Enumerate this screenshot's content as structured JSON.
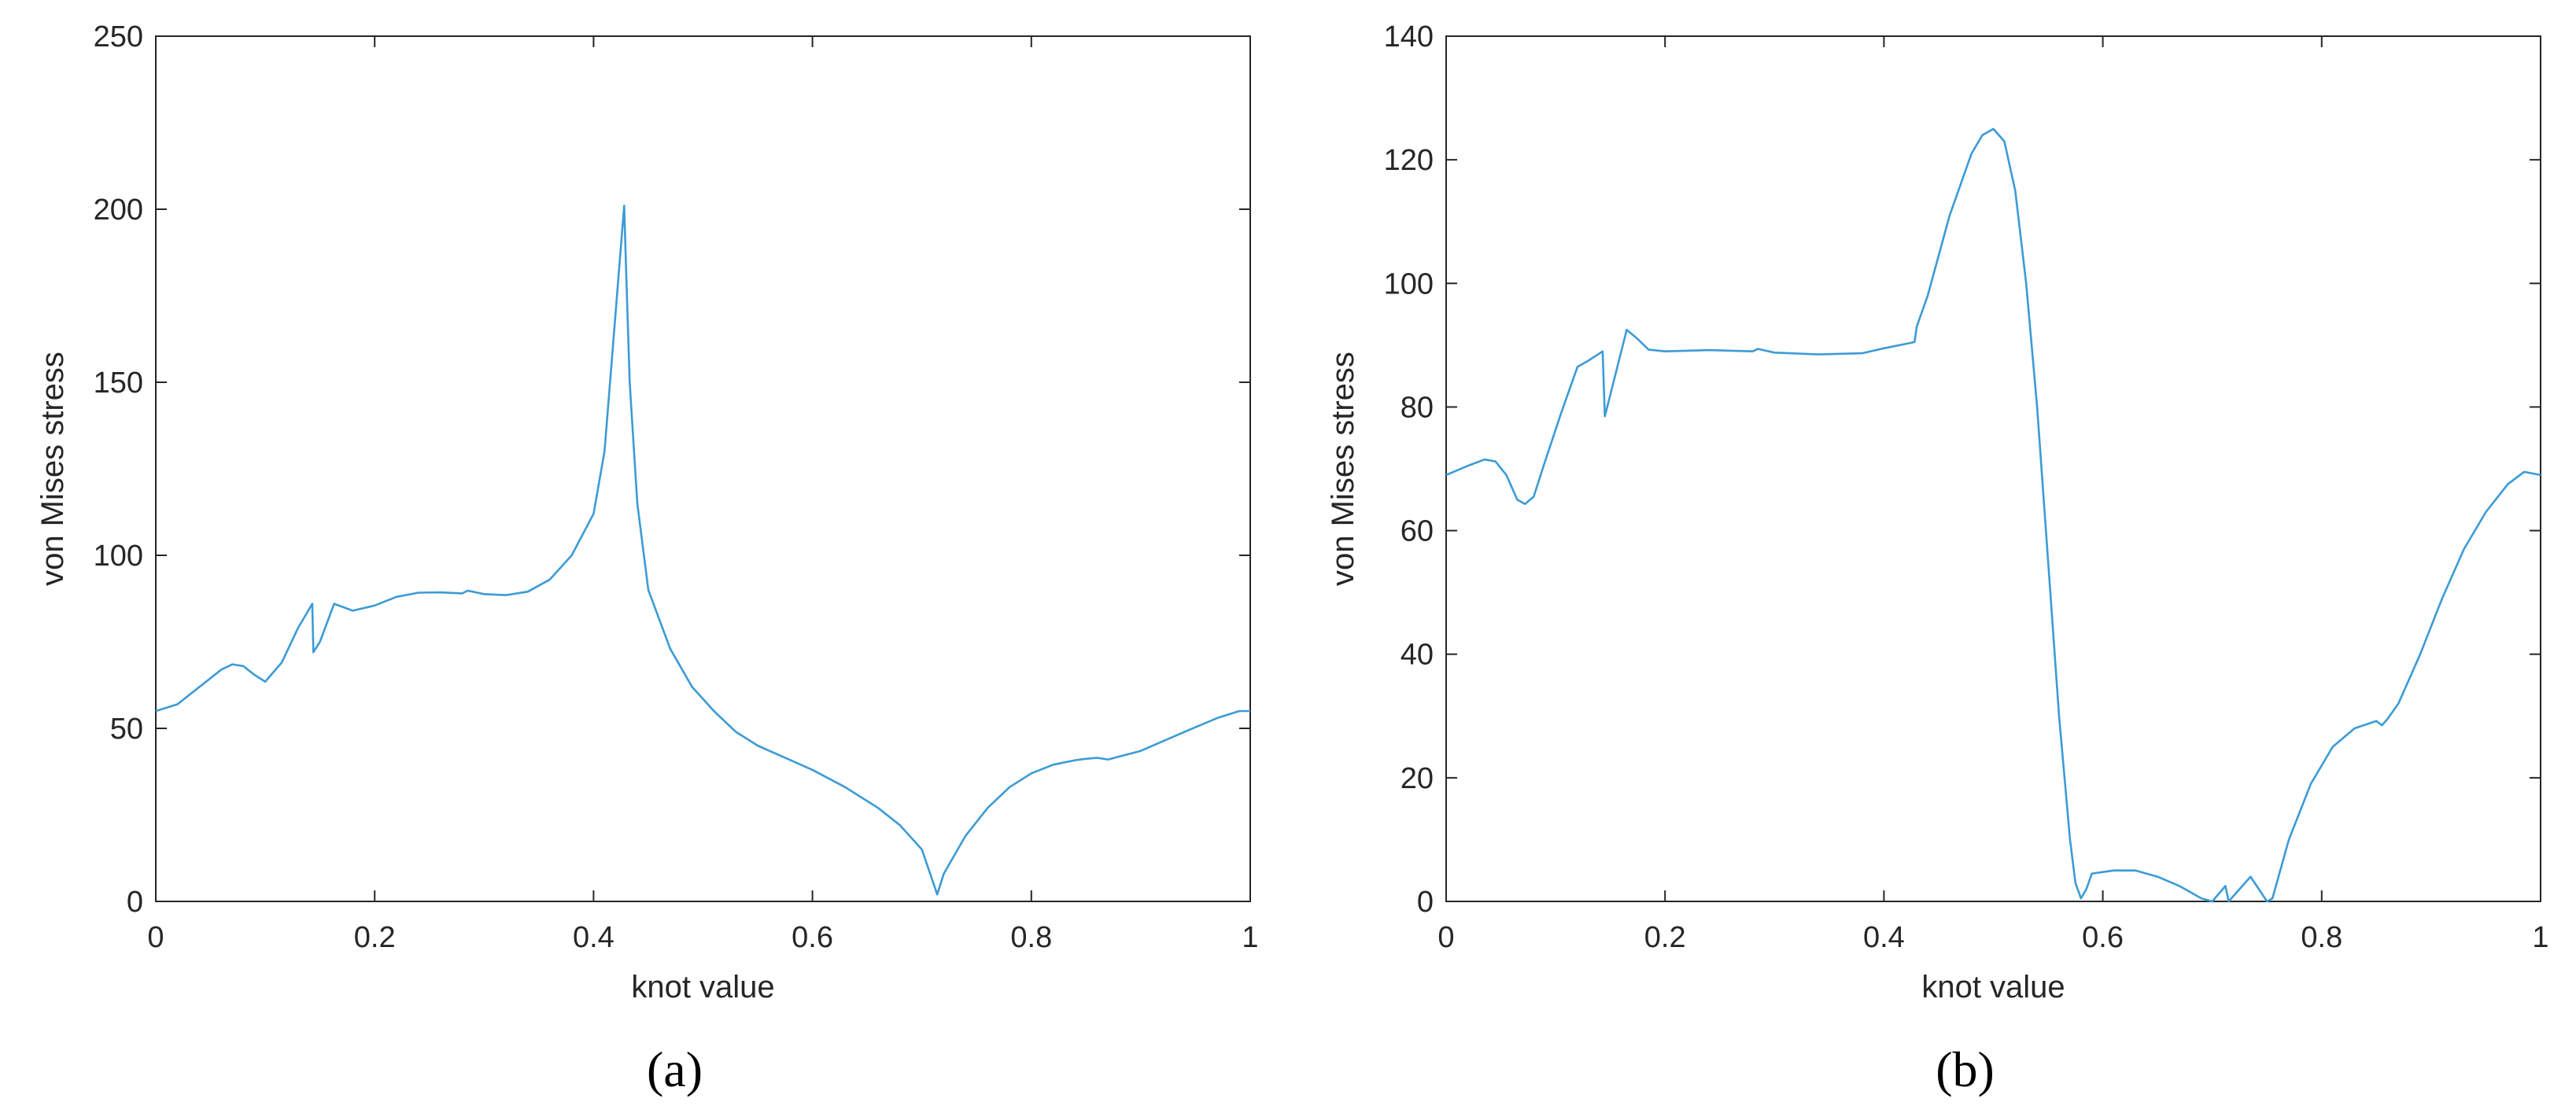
{
  "colors": {
    "line": "#3c9bd6",
    "axis": "#262626",
    "background": "#ffffff"
  },
  "chart_data": [
    {
      "type": "line",
      "panel_label": "(a)",
      "xlabel": "knot value",
      "ylabel": "von Mises stress",
      "xlim": [
        0,
        1
      ],
      "ylim": [
        0,
        250
      ],
      "xticks": [
        0,
        0.2,
        0.4,
        0.6,
        0.8,
        1
      ],
      "xtick_labels": [
        "0",
        "0.2",
        "0.4",
        "0.6",
        "0.8",
        "1"
      ],
      "yticks": [
        0,
        50,
        100,
        150,
        200,
        250
      ],
      "ytick_labels": [
        "0",
        "50",
        "100",
        "150",
        "200",
        "250"
      ],
      "grid": false,
      "series": [
        {
          "x": [
            0,
            0.02,
            0.04,
            0.06,
            0.07,
            0.08,
            0.09,
            0.1,
            0.115,
            0.13,
            0.143,
            0.144,
            0.15,
            0.163,
            0.18,
            0.2,
            0.22,
            0.24,
            0.26,
            0.28,
            0.285,
            0.3,
            0.32,
            0.34,
            0.36,
            0.38,
            0.4,
            0.41,
            0.428,
            0.43,
            0.433,
            0.44,
            0.45,
            0.47,
            0.49,
            0.51,
            0.53,
            0.55,
            0.6,
            0.63,
            0.66,
            0.68,
            0.7,
            0.714,
            0.72,
            0.74,
            0.76,
            0.78,
            0.8,
            0.82,
            0.84,
            0.85,
            0.86,
            0.87,
            0.9,
            0.94,
            0.97,
            0.99,
            1
          ],
          "y": [
            55,
            57,
            62,
            67,
            68.5,
            68,
            65.5,
            63.5,
            69,
            79,
            86,
            72,
            75,
            86,
            84,
            85.5,
            88,
            89.2,
            89.3,
            89,
            89.8,
            88.8,
            88.5,
            89.5,
            93,
            100,
            112,
            130,
            201,
            180,
            150,
            115,
            90,
            73,
            62,
            55,
            49,
            45,
            38,
            33,
            27,
            22,
            15,
            2,
            8,
            19,
            27,
            33,
            37,
            39.5,
            40.8,
            41.2,
            41.5,
            41,
            43.5,
            49,
            53,
            55,
            55
          ]
        }
      ]
    },
    {
      "type": "line",
      "panel_label": "(b)",
      "xlabel": "knot value",
      "ylabel": "von Mises stress",
      "xlim": [
        0,
        1
      ],
      "ylim": [
        0,
        140
      ],
      "xticks": [
        0,
        0.2,
        0.4,
        0.6,
        0.8,
        1
      ],
      "xtick_labels": [
        "0",
        "0.2",
        "0.4",
        "0.6",
        "0.8",
        "1"
      ],
      "yticks": [
        0,
        20,
        40,
        60,
        80,
        100,
        120,
        140
      ],
      "ytick_labels": [
        "0",
        "20",
        "40",
        "60",
        "80",
        "100",
        "120",
        "140"
      ],
      "grid": false,
      "series": [
        {
          "x": [
            0,
            0.02,
            0.035,
            0.045,
            0.055,
            0.065,
            0.072,
            0.08,
            0.09,
            0.105,
            0.12,
            0.13,
            0.143,
            0.145,
            0.15,
            0.165,
            0.175,
            0.185,
            0.2,
            0.24,
            0.28,
            0.285,
            0.3,
            0.34,
            0.38,
            0.4,
            0.428,
            0.43,
            0.44,
            0.46,
            0.48,
            0.49,
            0.5,
            0.51,
            0.52,
            0.53,
            0.54,
            0.55,
            0.56,
            0.57,
            0.575,
            0.58,
            0.585,
            0.59,
            0.61,
            0.63,
            0.65,
            0.67,
            0.69,
            0.7,
            0.712,
            0.715,
            0.72,
            0.735,
            0.75,
            0.755,
            0.77,
            0.79,
            0.81,
            0.83,
            0.85,
            0.855,
            0.86,
            0.87,
            0.89,
            0.91,
            0.93,
            0.95,
            0.97,
            0.985,
            1
          ],
          "y": [
            69,
            70.5,
            71.5,
            71.2,
            69,
            65,
            64.3,
            65.5,
            71,
            79,
            86.5,
            87.5,
            89,
            78.5,
            82,
            92.5,
            91,
            89.3,
            89,
            89.2,
            89,
            89.4,
            88.8,
            88.5,
            88.7,
            89.5,
            90.5,
            93,
            98,
            111,
            121,
            124,
            125,
            123,
            115,
            100,
            80,
            55,
            30,
            10,
            3,
            0.5,
            2,
            4.5,
            5,
            5,
            4,
            2.5,
            0.5,
            0,
            2.5,
            0,
            1,
            4,
            0,
            0.5,
            10,
            19,
            25,
            28,
            29.2,
            28.5,
            29.5,
            32,
            40,
            49,
            57,
            63,
            67.5,
            69.5,
            69
          ]
        }
      ]
    }
  ]
}
